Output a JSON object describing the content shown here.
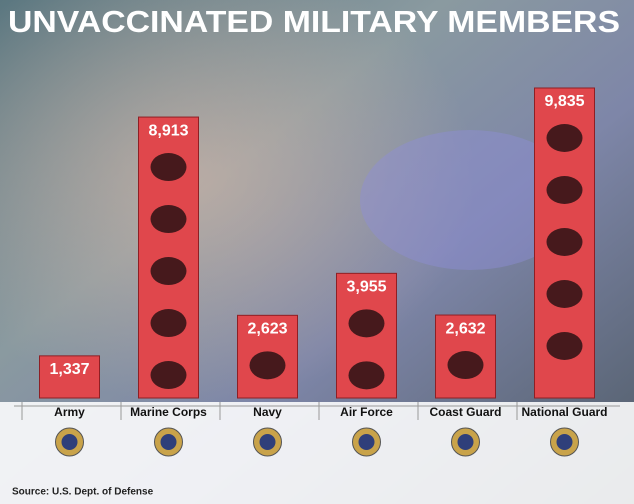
{
  "chart_data": {
    "type": "bar",
    "title": "UNVACCINATED MILITARY  MEMBERS",
    "categories": [
      "Army",
      "Marine Corps",
      "Navy",
      "Air Force",
      "Coast Guard",
      "National Guard"
    ],
    "values": [
      1337,
      8913,
      2623,
      3955,
      2632,
      9835
    ],
    "value_labels": [
      "1,337",
      "8,913",
      "2,623",
      "3,955",
      "2,632",
      "9,835"
    ],
    "color": "#e0474c",
    "source": "Source: U.S. Dept. of Defense"
  }
}
